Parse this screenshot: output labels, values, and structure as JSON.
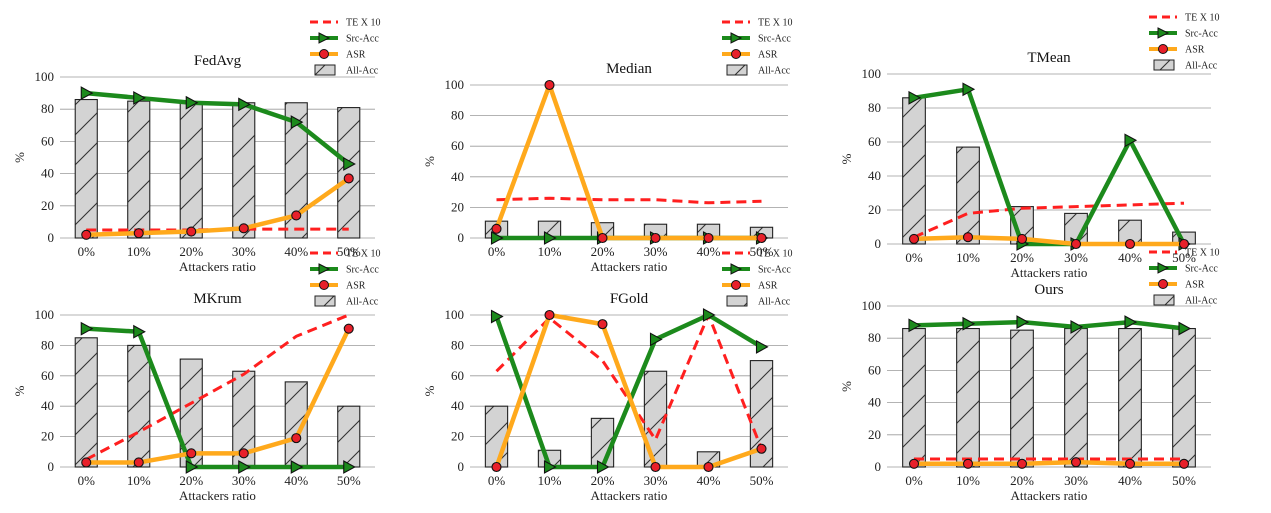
{
  "legend_entries": {
    "te": "TE X 10",
    "src": "Src-Acc",
    "asr": "ASR",
    "all": "All-Acc"
  },
  "colors": {
    "te": "#ff1f1f",
    "src": "#1c8a1c",
    "asr": "#ffa91c",
    "bar_fill": "#d3d3d3",
    "bar_edge": "#222222",
    "grid": "#9a9a9a"
  },
  "chart_data": [
    {
      "type": "bar",
      "title": "FedAvg",
      "xlabel": "Attackers ratio",
      "ylabel": "%",
      "categories": [
        "0%",
        "10%",
        "20%",
        "30%",
        "40%",
        "50%"
      ],
      "ylim": [
        0,
        100
      ],
      "yticks": [
        0,
        20,
        40,
        60,
        80,
        100
      ],
      "grid": true,
      "legend": "top-right",
      "series": [
        {
          "name": "TE X 10",
          "kind": "line",
          "values": [
            5,
            5,
            5,
            5.5,
            5.5,
            5.5
          ]
        },
        {
          "name": "Src-Acc",
          "kind": "line",
          "values": [
            90,
            87,
            84,
            83,
            72,
            46
          ]
        },
        {
          "name": "ASR",
          "kind": "line",
          "values": [
            2,
            3,
            4,
            6,
            14,
            37
          ]
        },
        {
          "name": "All-Acc",
          "kind": "bar",
          "values": [
            86,
            85,
            84,
            84,
            84,
            81
          ]
        }
      ]
    },
    {
      "type": "bar",
      "title": "Median",
      "xlabel": "Attackers ratio",
      "ylabel": "%",
      "categories": [
        "0%",
        "10%",
        "20%",
        "30%",
        "40%",
        "50%"
      ],
      "ylim": [
        0,
        100
      ],
      "yticks": [
        0,
        20,
        40,
        60,
        80,
        100
      ],
      "grid": true,
      "legend": "top-right",
      "series": [
        {
          "name": "TE X 10",
          "kind": "line",
          "values": [
            25,
            26,
            25,
            25,
            23,
            24
          ]
        },
        {
          "name": "Src-Acc",
          "kind": "line",
          "values": [
            0,
            0,
            0,
            0,
            0,
            0
          ]
        },
        {
          "name": "ASR",
          "kind": "line",
          "values": [
            6,
            100,
            0,
            0,
            0,
            0
          ]
        },
        {
          "name": "All-Acc",
          "kind": "bar",
          "values": [
            11,
            11,
            10,
            9,
            9,
            7
          ]
        }
      ]
    },
    {
      "type": "bar",
      "title": "TMean",
      "xlabel": "Attackers ratio",
      "ylabel": "%",
      "categories": [
        "0%",
        "10%",
        "20%",
        "30%",
        "40%",
        "50%"
      ],
      "ylim": [
        0,
        100
      ],
      "yticks": [
        0,
        20,
        40,
        60,
        80,
        100
      ],
      "grid": true,
      "legend": "top-right",
      "series": [
        {
          "name": "TE X 10",
          "kind": "line",
          "values": [
            4,
            18,
            21,
            22,
            23,
            24
          ]
        },
        {
          "name": "Src-Acc",
          "kind": "line",
          "values": [
            86,
            91,
            0,
            0,
            61,
            0
          ]
        },
        {
          "name": "ASR",
          "kind": "line",
          "values": [
            3,
            4,
            3,
            0,
            0,
            0
          ]
        },
        {
          "name": "All-Acc",
          "kind": "bar",
          "values": [
            86,
            57,
            22,
            18,
            14,
            7
          ]
        }
      ]
    },
    {
      "type": "bar",
      "title": "MKrum",
      "xlabel": "Attackers ratio",
      "ylabel": "%",
      "categories": [
        "0%",
        "10%",
        "20%",
        "30%",
        "40%",
        "50%"
      ],
      "ylim": [
        0,
        100
      ],
      "yticks": [
        0,
        20,
        40,
        60,
        80,
        100
      ],
      "grid": true,
      "legend": "top-right",
      "series": [
        {
          "name": "TE X 10",
          "kind": "line",
          "values": [
            5,
            23,
            42,
            61,
            86,
            100
          ]
        },
        {
          "name": "Src-Acc",
          "kind": "line",
          "values": [
            91,
            89,
            0,
            0,
            0,
            0
          ]
        },
        {
          "name": "ASR",
          "kind": "line",
          "values": [
            3,
            3,
            9,
            9,
            19,
            91
          ]
        },
        {
          "name": "All-Acc",
          "kind": "bar",
          "values": [
            85,
            80,
            71,
            63,
            56,
            40
          ]
        }
      ]
    },
    {
      "type": "bar",
      "title": "FGold",
      "xlabel": "Attackers ratio",
      "ylabel": "%",
      "categories": [
        "0%",
        "10%",
        "20%",
        "30%",
        "40%",
        "50%"
      ],
      "ylim": [
        0,
        100
      ],
      "yticks": [
        0,
        20,
        40,
        60,
        80,
        100
      ],
      "grid": true,
      "legend": "top-right",
      "series": [
        {
          "name": "TE X 10",
          "kind": "line",
          "values": [
            63,
            98,
            70,
            18,
            100,
            12
          ]
        },
        {
          "name": "Src-Acc",
          "kind": "line",
          "values": [
            99,
            0,
            0,
            84,
            100,
            79
          ]
        },
        {
          "name": "ASR",
          "kind": "line",
          "values": [
            0,
            100,
            94,
            0,
            0,
            12
          ]
        },
        {
          "name": "All-Acc",
          "kind": "bar",
          "values": [
            40,
            11,
            32,
            63,
            10,
            70
          ]
        }
      ]
    },
    {
      "type": "bar",
      "title": "Ours",
      "xlabel": "Attackers ratio",
      "ylabel": "%",
      "categories": [
        "0%",
        "10%",
        "20%",
        "30%",
        "40%",
        "50%"
      ],
      "ylim": [
        0,
        100
      ],
      "yticks": [
        0,
        20,
        40,
        60,
        80,
        100
      ],
      "grid": true,
      "legend": "top-right",
      "series": [
        {
          "name": "TE X 10",
          "kind": "line",
          "values": [
            5,
            5,
            5,
            5,
            5,
            5
          ]
        },
        {
          "name": "Src-Acc",
          "kind": "line",
          "values": [
            88,
            89,
            90,
            87,
            90,
            86
          ]
        },
        {
          "name": "ASR",
          "kind": "line",
          "values": [
            2,
            2,
            2,
            3,
            2,
            2
          ]
        },
        {
          "name": "All-Acc",
          "kind": "bar",
          "values": [
            86,
            86,
            85,
            86,
            86,
            86
          ]
        }
      ]
    }
  ]
}
